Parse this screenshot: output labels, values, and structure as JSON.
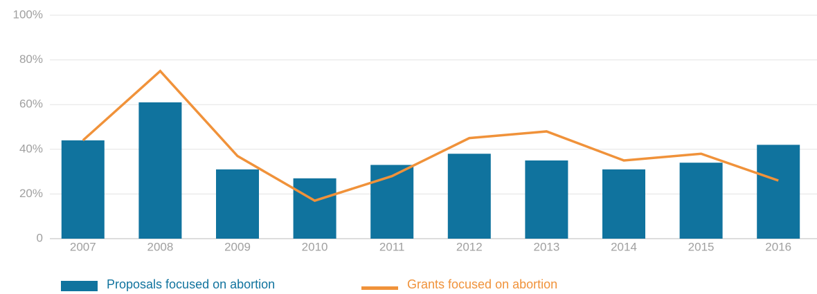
{
  "chart_data": {
    "type": "bar",
    "categories": [
      "2007",
      "2008",
      "2009",
      "2010",
      "2011",
      "2012",
      "2013",
      "2014",
      "2015",
      "2016"
    ],
    "series": [
      {
        "name": "Proposals focused on abortion",
        "type": "bar",
        "color": "#10739e",
        "values": [
          44,
          61,
          31,
          27,
          33,
          38,
          35,
          31,
          34,
          42
        ]
      },
      {
        "name": "Grants focused on abortion",
        "type": "line",
        "color": "#f0923a",
        "values": [
          44,
          75,
          37,
          17,
          28,
          45,
          48,
          35,
          38,
          26
        ]
      }
    ],
    "ylim": [
      0,
      100
    ],
    "yticks": [
      0,
      {
        "value": 20,
        "label": "20%"
      },
      {
        "value": 40,
        "label": "40%"
      },
      {
        "value": 60,
        "label": "60%"
      },
      {
        "value": 80,
        "label": "80%"
      },
      {
        "value": 100,
        "label": "100%"
      }
    ],
    "grid": true,
    "legend": "bottom"
  }
}
